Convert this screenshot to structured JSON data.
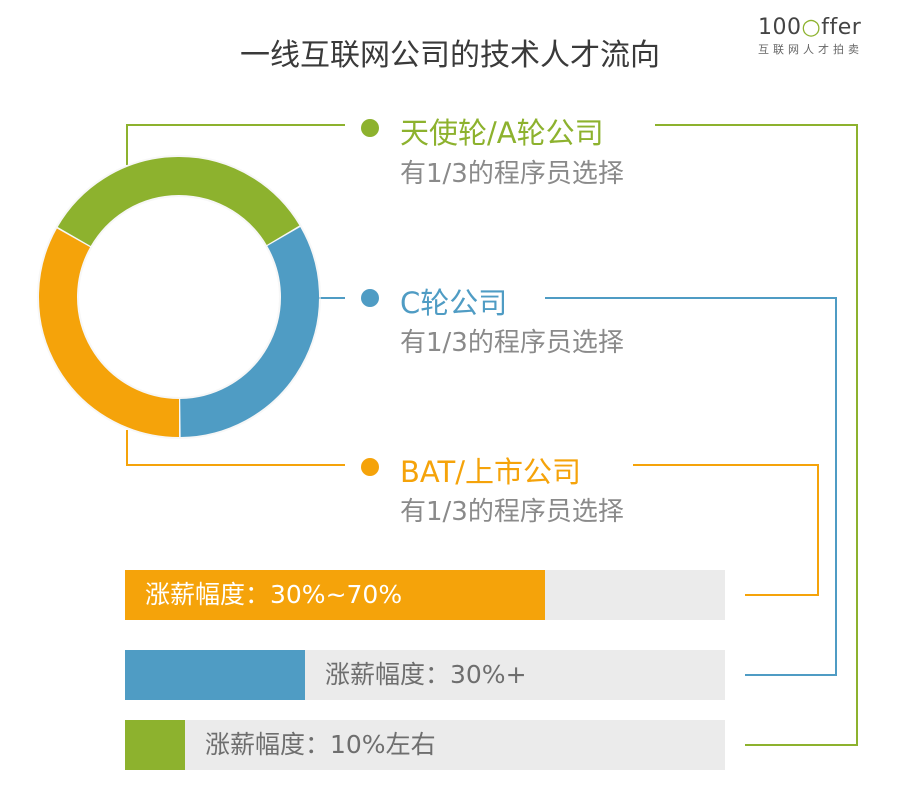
{
  "title": "一线互联网公司的技术人才流向",
  "logo": {
    "main_a": "100",
    "main_b": "ffer",
    "sub": "互联网人才拍卖"
  },
  "colors": {
    "green": "#8db22e",
    "blue": "#4f9cc4",
    "orange": "#f5a30a",
    "bar_bg": "#ebebeb",
    "text_gray": "#8a8a8a"
  },
  "chart_data": [
    {
      "type": "pie",
      "categories": [
        "天使轮/A轮公司",
        "C轮公司",
        "BAT/上市公司"
      ],
      "values": [
        33.3,
        33.3,
        33.3
      ],
      "descriptions": [
        "有1/3的程序员选择",
        "有1/3的程序员选择",
        "有1/3的程序员选择"
      ]
    },
    {
      "type": "bar",
      "categories": [
        "BAT/上市公司",
        "C轮公司",
        "天使轮/A轮公司"
      ],
      "labels": [
        "涨薪幅度：30%~70%",
        "涨薪幅度：30%+",
        "涨薪幅度：10%左右"
      ],
      "values": [
        0.7,
        0.3,
        0.1
      ]
    }
  ]
}
